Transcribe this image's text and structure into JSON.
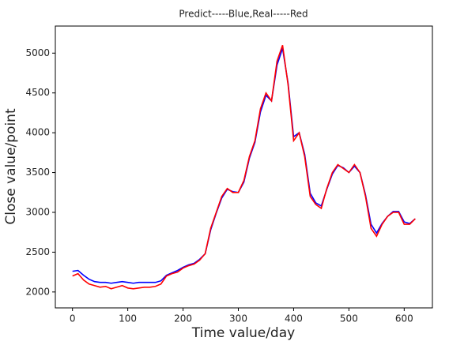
{
  "chart_data": {
    "type": "line",
    "title": "Predict-----Blue,Real-----Red",
    "x_label": "Time value/day",
    "y_label": "Close value/point",
    "x": [
      0,
      10,
      20,
      30,
      40,
      50,
      60,
      70,
      80,
      90,
      100,
      110,
      120,
      130,
      140,
      150,
      160,
      170,
      180,
      190,
      200,
      210,
      220,
      230,
      240,
      250,
      260,
      270,
      280,
      290,
      300,
      310,
      320,
      330,
      340,
      350,
      360,
      370,
      380,
      390,
      400,
      410,
      420,
      430,
      440,
      450,
      460,
      470,
      480,
      490,
      500,
      510,
      520,
      530,
      540,
      550,
      560,
      570,
      580,
      590,
      600,
      610,
      620
    ],
    "series": [
      {
        "name": "Predict",
        "color": "#0000ff",
        "values": [
          2260,
          2270,
          2210,
          2160,
          2130,
          2120,
          2120,
          2110,
          2120,
          2130,
          2120,
          2110,
          2120,
          2120,
          2120,
          2120,
          2140,
          2210,
          2240,
          2270,
          2310,
          2340,
          2360,
          2410,
          2480,
          2780,
          2990,
          3180,
          3290,
          3260,
          3250,
          3380,
          3680,
          3880,
          4260,
          4470,
          4400,
          4850,
          5060,
          4620,
          3950,
          4000,
          3730,
          3240,
          3120,
          3080,
          3290,
          3480,
          3590,
          3560,
          3500,
          3580,
          3500,
          3220,
          2850,
          2740,
          2860,
          2950,
          3010,
          3010,
          2880,
          2860,
          2920
        ]
      },
      {
        "name": "Real",
        "color": "#ff0000",
        "values": [
          2200,
          2230,
          2150,
          2100,
          2080,
          2060,
          2070,
          2040,
          2060,
          2080,
          2050,
          2040,
          2050,
          2060,
          2060,
          2070,
          2100,
          2200,
          2230,
          2250,
          2300,
          2330,
          2350,
          2400,
          2480,
          2800,
          3000,
          3200,
          3300,
          3250,
          3250,
          3400,
          3700,
          3900,
          4300,
          4500,
          4400,
          4900,
          5100,
          4600,
          3900,
          4000,
          3700,
          3200,
          3100,
          3050,
          3300,
          3500,
          3600,
          3550,
          3500,
          3600,
          3500,
          3200,
          2800,
          2700,
          2850,
          2950,
          3000,
          3000,
          2850,
          2850,
          2920
        ]
      }
    ],
    "xlim": [
      -31,
      651
    ],
    "ylim": [
      1800,
      5340
    ],
    "xticks": [
      0,
      100,
      200,
      300,
      400,
      500,
      600
    ],
    "yticks": [
      2000,
      2500,
      3000,
      3500,
      4000,
      4500,
      5000
    ]
  }
}
